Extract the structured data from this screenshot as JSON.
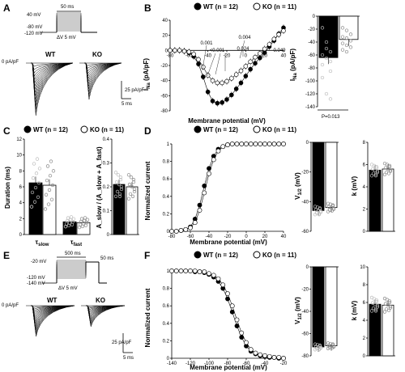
{
  "panels": {
    "A": {
      "letter": "A",
      "protocol": {
        "duration": "50 ms",
        "test_top": "40 mV",
        "test_bottom": "-80 mV",
        "holding": "-120 mV",
        "step": "ΔV 5 mV"
      },
      "traces": {
        "baseline": "0 pA/pF",
        "wt": "WT",
        "ko": "KO",
        "scale_y": "25 pA/pF",
        "scale_x": "5 ms"
      }
    },
    "B": {
      "letter": "B",
      "legend": {
        "wt": "WT (n = 12)",
        "ko": "KO (n = 11)"
      },
      "ylabel": "I_Na (pA/pF)",
      "ylabel_main": "I",
      "ylabel_sub": "Na",
      "ylabel_rest": " (pA/pF)",
      "xlabel": "Membrane potential (mV)",
      "pvals": [
        "0.001",
        "<0.001",
        "0.004",
        "0.024",
        "0.049"
      ],
      "bar_ylabel_main": "I",
      "bar_ylabel_sub": "Na",
      "bar_ylabel_rest": " (pA/pF)",
      "bar_p": "P=0.013"
    },
    "C": {
      "letter": "C",
      "legend": {
        "wt": "WT (n = 12)",
        "ko": "KO (n = 11)"
      },
      "ylabel": "Duration (ms)",
      "cat_slow_main": "τ",
      "cat_slow_sub": "slow",
      "cat_fast_main": "τ",
      "cat_fast_sub": "fast",
      "ratio_label": "A_slow / (A_slow + A_fast)"
    },
    "D": {
      "letter": "D",
      "legend": {
        "wt": "WT (n = 12)",
        "ko": "KO (n = 11)"
      },
      "ylabel": "Normalized current",
      "xlabel": "Membrane potential (mV)",
      "v_label_main": "V",
      "v_label_sub": "1/2",
      "v_label_rest": " (mV)",
      "k_label": "k (mV)"
    },
    "E": {
      "letter": "E",
      "protocol": {
        "duration": "500 ms",
        "post": "50 ms",
        "prepulse_top": "-20 mV",
        "prepulse_bottom": "-120 mV",
        "holding": "-140 mV",
        "step": "ΔV 5 mV"
      },
      "traces": {
        "baseline": "0 pA/pF",
        "wt": "WT",
        "ko": "KO",
        "scale_y": "25 pA/pF",
        "scale_x": "5 ms"
      }
    },
    "F": {
      "letter": "F",
      "legend": {
        "wt": "WT (n = 12)",
        "ko": "KO (n = 11)"
      },
      "ylabel": "Normalized current",
      "xlabel": "Membrane potential (mV)",
      "v_label_main": "V",
      "v_label_sub": "1/2",
      "v_label_rest": " (mV)",
      "k_label": "k (mV)"
    }
  },
  "colors": {
    "wt": "#000000",
    "ko": "#ffffff",
    "dot_on_dark": "#bbbbbb",
    "dot_on_light": "#888888"
  },
  "chart_data": [
    {
      "id": "B-IV",
      "type": "scatter",
      "xlabel": "Membrane potential (mV)",
      "ylabel": "INa (pA/pF)",
      "xlim": [
        -80,
        40
      ],
      "ylim": [
        -80,
        40
      ],
      "xticks": [
        -80,
        -60,
        -40,
        -20,
        0,
        20,
        40
      ],
      "yticks": [
        -80,
        -60,
        -40,
        -20,
        0,
        20,
        40
      ],
      "x": [
        -80,
        -75,
        -70,
        -65,
        -60,
        -55,
        -50,
        -45,
        -40,
        -35,
        -30,
        -25,
        -20,
        -15,
        -10,
        -5,
        0,
        5,
        10,
        15,
        20,
        25,
        30,
        35,
        40
      ],
      "series": [
        {
          "name": "WT (n = 12)",
          "values": [
            0,
            0,
            0,
            -1,
            -3,
            -8,
            -18,
            -35,
            -55,
            -67,
            -70,
            -69,
            -65,
            -59,
            -51,
            -43,
            -34,
            -25,
            -17,
            -10,
            -3,
            5,
            13,
            22,
            30
          ]
        },
        {
          "name": "KO (n = 11)",
          "values": [
            0,
            0,
            0,
            -1,
            -2,
            -5,
            -12,
            -22,
            -33,
            -40,
            -43,
            -43,
            -41,
            -37,
            -32,
            -27,
            -21,
            -15,
            -9,
            -4,
            2,
            8,
            15,
            21,
            26
          ]
        }
      ],
      "annotations": [
        "0.001",
        "<0.001",
        "0.004",
        "0.024",
        "0.049"
      ]
    },
    {
      "id": "B-bar",
      "type": "bar",
      "categories": [
        "WT",
        "KO"
      ],
      "values": [
        -64,
        -36
      ],
      "ylim": [
        -140,
        0
      ],
      "yticks": [
        -140,
        -120,
        -100,
        -80,
        -60,
        -40,
        -20,
        0
      ],
      "ylabel": "INa (pA/pF)",
      "points": {
        "WT": [
          -18,
          -40,
          -55,
          -60,
          -65,
          -70,
          -75,
          -50,
          -85,
          -95,
          -120,
          -128
        ],
        "KO": [
          -18,
          -22,
          -28,
          -32,
          -34,
          -38,
          -42,
          -45,
          -48,
          -52,
          -55
        ]
      },
      "annotation": "P=0.013"
    },
    {
      "id": "C-tau",
      "type": "bar",
      "categories": [
        "τslow",
        "τfast"
      ],
      "series": [
        {
          "name": "WT (n = 12)",
          "values": [
            6.5,
            1.6
          ]
        },
        {
          "name": "KO (n = 11)",
          "values": [
            6.2,
            1.5
          ]
        }
      ],
      "ylim": [
        0,
        12
      ],
      "yticks": [
        0,
        2,
        4,
        6,
        8,
        10,
        12
      ],
      "ylabel": "Duration (ms)"
    },
    {
      "id": "C-ratio",
      "type": "bar",
      "categories": [
        "WT",
        "KO"
      ],
      "values": [
        0.21,
        0.2
      ],
      "ylim": [
        0,
        0.4
      ],
      "yticks": [
        0,
        0.1,
        0.2,
        0.3,
        0.4
      ],
      "ylabel": "Aslow / (Aslow+Afast)"
    },
    {
      "id": "D-activation",
      "type": "line",
      "xlabel": "Membrane potential (mV)",
      "ylabel": "Normalized current",
      "xlim": [
        -80,
        40
      ],
      "ylim": [
        0,
        1
      ],
      "xticks": [
        -80,
        -60,
        -40,
        -20,
        0,
        20,
        40
      ],
      "yticks": [
        0,
        0.2,
        0.4,
        0.6,
        0.8,
        1.0
      ],
      "x": [
        -80,
        -75,
        -70,
        -65,
        -60,
        -55,
        -50,
        -45,
        -40,
        -35,
        -30,
        -25,
        -20,
        -15,
        -10,
        -5,
        0,
        5,
        10,
        15,
        20,
        25,
        30,
        35,
        40
      ],
      "series": [
        {
          "name": "WT (n = 12)",
          "values": [
            0,
            0,
            0.01,
            0.02,
            0.05,
            0.14,
            0.3,
            0.52,
            0.72,
            0.86,
            0.94,
            0.97,
            0.99,
            1,
            1,
            1,
            1,
            1,
            1,
            1,
            1,
            1,
            1,
            1,
            1
          ]
        },
        {
          "name": "KO (n = 11)",
          "values": [
            0,
            0,
            0.01,
            0.02,
            0.04,
            0.1,
            0.24,
            0.44,
            0.66,
            0.82,
            0.92,
            0.97,
            0.99,
            1,
            1,
            1,
            1,
            1,
            1,
            1,
            1,
            1,
            1,
            1,
            1
          ]
        }
      ]
    },
    {
      "id": "D-v12",
      "type": "bar",
      "categories": [
        "WT",
        "KO"
      ],
      "values": [
        -46,
        -44
      ],
      "ylim": [
        -60,
        0
      ],
      "yticks": [
        -60,
        -40,
        -20,
        0
      ],
      "ylabel": "V1/2 (mV)"
    },
    {
      "id": "D-k",
      "type": "bar",
      "categories": [
        "WT",
        "KO"
      ],
      "values": [
        5.5,
        5.6
      ],
      "ylim": [
        0,
        8
      ],
      "yticks": [
        0,
        2,
        4,
        6,
        8
      ],
      "ylabel": "k (mV)"
    },
    {
      "id": "F-inactivation",
      "type": "line",
      "xlabel": "Membrane potential (mV)",
      "ylabel": "Normalized current",
      "xlim": [
        -140,
        -20
      ],
      "ylim": [
        0,
        1
      ],
      "xticks": [
        -140,
        -120,
        -100,
        -80,
        -60,
        -40,
        -20
      ],
      "yticks": [
        0,
        0.2,
        0.4,
        0.6,
        0.8,
        1.0
      ],
      "x": [
        -140,
        -135,
        -130,
        -125,
        -120,
        -115,
        -110,
        -105,
        -100,
        -95,
        -90,
        -85,
        -80,
        -75,
        -70,
        -65,
        -60,
        -55,
        -50,
        -45,
        -40,
        -35,
        -30,
        -25,
        -20
      ],
      "series": [
        {
          "name": "WT (n = 12)",
          "values": [
            1,
            1,
            1,
            1,
            1,
            0.99,
            0.99,
            0.98,
            0.96,
            0.93,
            0.88,
            0.8,
            0.68,
            0.53,
            0.37,
            0.24,
            0.14,
            0.08,
            0.05,
            0.03,
            0.02,
            0.01,
            0.01,
            0,
            0
          ]
        },
        {
          "name": "KO (n = 11)",
          "values": [
            1,
            1,
            1,
            1,
            1,
            1,
            0.99,
            0.99,
            0.97,
            0.95,
            0.91,
            0.84,
            0.74,
            0.6,
            0.44,
            0.29,
            0.18,
            0.1,
            0.06,
            0.04,
            0.03,
            0.02,
            0.01,
            0.01,
            0
          ]
        }
      ]
    },
    {
      "id": "F-v12",
      "type": "bar",
      "categories": [
        "WT",
        "KO"
      ],
      "values": [
        -72,
        -71
      ],
      "ylim": [
        -80,
        0
      ],
      "yticks": [
        -80,
        -60,
        -40,
        -20,
        0
      ],
      "ylabel": "V1/2 (mV)"
    },
    {
      "id": "F-k",
      "type": "bar",
      "categories": [
        "WT",
        "KO"
      ],
      "values": [
        5.8,
        5.7
      ],
      "ylim": [
        0,
        10
      ],
      "yticks": [
        0,
        2,
        4,
        6,
        8,
        10
      ],
      "ylabel": "k (mV)"
    }
  ]
}
